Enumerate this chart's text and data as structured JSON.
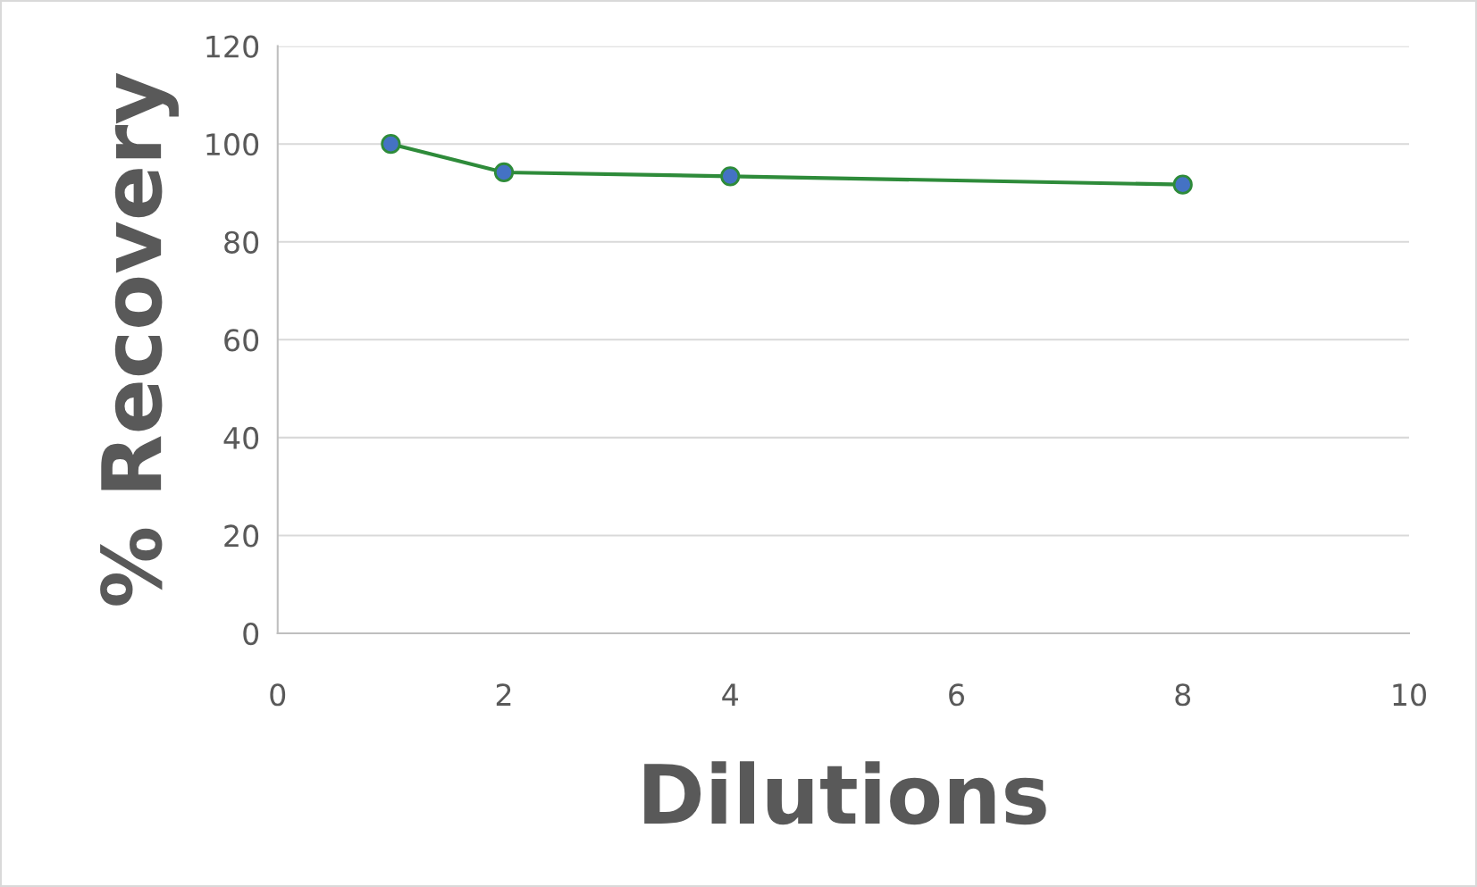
{
  "chart_data": {
    "type": "line",
    "xlabel": "Dilutions",
    "ylabel": "% Recovery",
    "series": [
      {
        "color": "#2e8b3a",
        "x": [
          1,
          2,
          4,
          8
        ],
        "values": [
          100,
          94.2,
          93.4,
          91.7
        ]
      }
    ],
    "marker": "circle",
    "line_style": "solid",
    "xlim": [
      0,
      10
    ],
    "xticks": [
      0,
      2,
      4,
      6,
      8,
      10
    ],
    "ylim": [
      0,
      120
    ],
    "yticks": [
      0,
      20,
      40,
      60,
      80,
      100,
      120
    ],
    "grid": "y",
    "legend": false
  }
}
